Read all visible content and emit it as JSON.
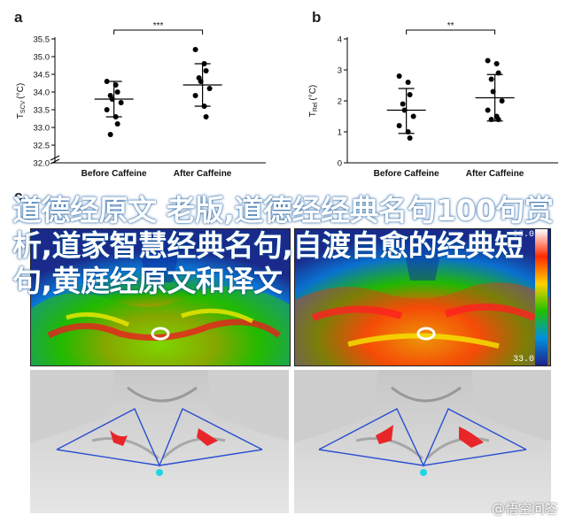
{
  "panels": {
    "a_letter": "a",
    "b_letter": "b",
    "c_letter": "c"
  },
  "overlay_title": "道德经原文 老版,道德经经典名句100句赏析,道家智慧经典名句,自渡自愈的经典短句,黄庭经原文和译文",
  "thermal_scale": {
    "max": "38.0",
    "min": "33.0"
  },
  "watermark": "@悟空问答",
  "chart_data": [
    {
      "type": "scatter",
      "panel": "a",
      "categories": [
        "Before Caffeine",
        "After Caffeine"
      ],
      "ylabel": "T_SCV (°C)",
      "ylabel_main": "T",
      "ylabel_sub": "SCV",
      "ylabel_unit": "(°C)",
      "ylim": [
        32.0,
        35.5
      ],
      "axis_break": true,
      "yticks": [
        "32.0",
        "32.5",
        "33.0",
        "33.5",
        "34.0",
        "34.5",
        "35.0",
        "35.5"
      ],
      "significance": "***",
      "series": [
        {
          "values": [
            34.3,
            34.2,
            34.0,
            33.9,
            33.8,
            33.7,
            33.5,
            33.3,
            33.1,
            32.8
          ],
          "mean": 33.8,
          "error_low": 33.3,
          "error_high": 34.3
        },
        {
          "values": [
            35.2,
            34.8,
            34.6,
            34.4,
            34.3,
            34.1,
            33.9,
            33.6,
            33.3
          ],
          "mean": 34.2,
          "error_low": 33.6,
          "error_high": 34.8
        }
      ]
    },
    {
      "type": "scatter",
      "panel": "b",
      "categories": [
        "Before Caffeine",
        "After Caffeine"
      ],
      "ylabel": "T_Rel (°C)",
      "ylabel_main": "T",
      "ylabel_sub": "Rel",
      "ylabel_unit": "(°C)",
      "ylim": [
        0,
        4
      ],
      "yticks": [
        "0",
        "1",
        "2",
        "3",
        "4"
      ],
      "significance": "**",
      "series": [
        {
          "values": [
            2.8,
            2.6,
            2.2,
            1.9,
            1.7,
            1.5,
            1.2,
            1.0,
            0.8
          ],
          "mean": 1.7,
          "error_low": 0.95,
          "error_high": 2.4
        },
        {
          "values": [
            3.3,
            3.2,
            2.9,
            2.7,
            2.3,
            2.0,
            1.7,
            1.5,
            1.4,
            1.4
          ],
          "mean": 2.1,
          "error_low": 1.35,
          "error_high": 2.85
        }
      ]
    }
  ]
}
